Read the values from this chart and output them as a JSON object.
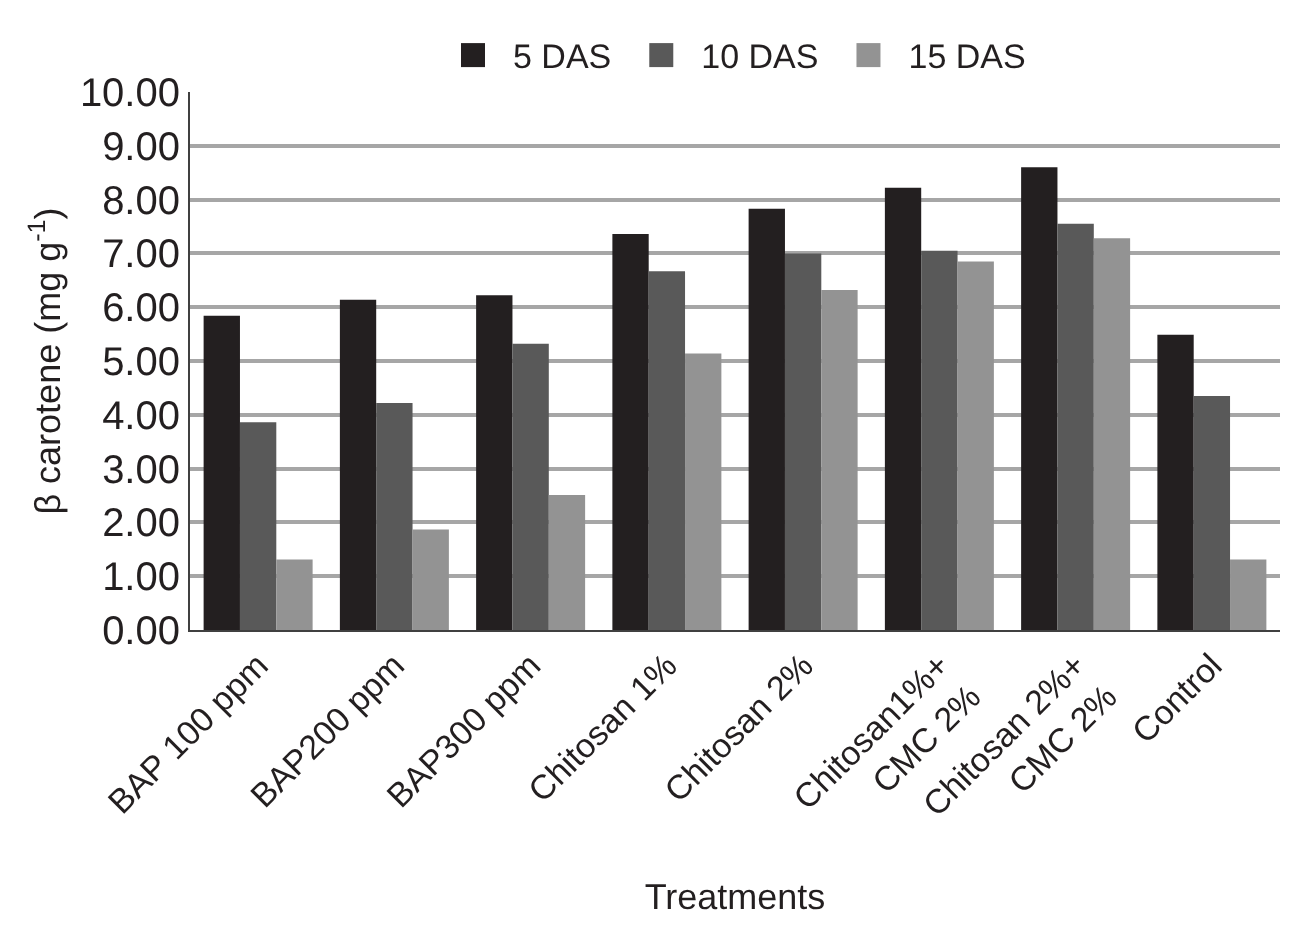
{
  "chart_data": {
    "type": "bar",
    "xlabel": "Treatments",
    "ylabel": "β carotene (mg g$^{-1}$)",
    "categories": [
      "BAP 100 ppm",
      "BAP200 ppm",
      "BAP300 ppm",
      "Chitosan 1%",
      "Chitosan 2%",
      "Chitosan1%+\nCMC 2%",
      "Chitosan 2%+\nCMC 2%",
      "Control"
    ],
    "series": [
      {
        "name": "5 DAS",
        "color": "#231f20",
        "values": [
          5.84,
          6.14,
          6.22,
          7.36,
          7.83,
          8.22,
          8.6,
          5.49
        ]
      },
      {
        "name": "10 DAS",
        "color": "#595959",
        "values": [
          3.86,
          4.22,
          5.32,
          6.67,
          7.0,
          7.05,
          7.55,
          4.35
        ]
      },
      {
        "name": "15 DAS",
        "color": "#939393",
        "values": [
          1.31,
          1.87,
          2.51,
          5.14,
          6.32,
          6.85,
          7.28,
          1.31
        ]
      }
    ],
    "ylim": [
      0,
      10
    ],
    "yticks": [
      {
        "value": 0,
        "label": "0.00"
      },
      {
        "value": 1,
        "label": "1.00"
      },
      {
        "value": 2,
        "label": "2.00"
      },
      {
        "value": 3,
        "label": "3.00"
      },
      {
        "value": 4,
        "label": "4.00"
      },
      {
        "value": 5,
        "label": "5.00"
      },
      {
        "value": 6,
        "label": "6.00"
      },
      {
        "value": 7,
        "label": "7.00"
      },
      {
        "value": 8,
        "label": "8.00"
      },
      {
        "value": 9,
        "label": "9.00"
      },
      {
        "value": 10,
        "label": "10.00"
      }
    ],
    "grid": "y",
    "legend": "top"
  }
}
